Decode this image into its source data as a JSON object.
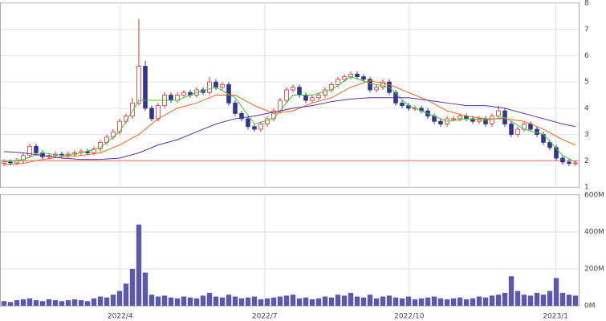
{
  "chart_data": [
    {
      "type": "candlestick",
      "x": [
        0,
        1,
        2,
        3,
        4,
        5,
        6,
        7,
        8,
        9,
        10,
        11,
        12,
        13,
        14,
        15,
        16,
        17,
        18,
        19,
        20,
        21,
        22,
        23,
        24,
        25,
        26,
        27,
        28,
        29,
        30,
        31,
        32,
        33,
        34,
        35,
        36,
        37,
        38,
        39,
        40,
        41,
        42,
        43,
        44,
        45,
        46,
        47,
        48,
        49,
        50,
        51,
        52,
        53,
        54,
        55,
        56,
        57,
        58,
        59,
        60,
        61,
        62,
        63,
        64,
        65,
        66,
        67,
        68,
        69,
        70,
        71,
        72,
        73,
        74,
        75,
        76,
        77,
        78,
        79,
        80,
        81,
        82,
        83,
        84,
        85,
        86,
        87,
        88,
        89
      ],
      "open": [
        1.9,
        1.95,
        1.92,
        2.0,
        2.2,
        2.55,
        2.3,
        2.15,
        2.2,
        2.25,
        2.2,
        2.25,
        2.3,
        2.35,
        2.3,
        2.45,
        2.7,
        2.9,
        3.1,
        3.5,
        3.7,
        4.2,
        5.6,
        4.0,
        3.6,
        4.1,
        4.5,
        4.3,
        4.5,
        4.6,
        4.5,
        4.7,
        4.6,
        5.0,
        4.8,
        4.9,
        4.2,
        3.8,
        3.6,
        3.3,
        3.2,
        3.4,
        3.6,
        3.9,
        4.3,
        4.7,
        4.8,
        4.5,
        4.3,
        4.4,
        4.5,
        4.7,
        4.9,
        5.1,
        5.2,
        5.3,
        5.2,
        5.1,
        4.7,
        4.8,
        5.0,
        4.6,
        4.2,
        4.1,
        4.0,
        4.0,
        3.9,
        3.7,
        3.5,
        3.4,
        3.6,
        3.6,
        3.7,
        3.6,
        3.5,
        3.6,
        3.4,
        3.7,
        3.9,
        3.4,
        3.0,
        3.2,
        3.4,
        3.2,
        3.0,
        2.7,
        2.5,
        2.1,
        1.95,
        1.9
      ],
      "high": [
        2.05,
        2.05,
        2.1,
        2.3,
        2.65,
        2.65,
        2.4,
        2.3,
        2.35,
        2.35,
        2.35,
        2.4,
        2.45,
        2.45,
        2.55,
        2.8,
        3.0,
        3.2,
        3.6,
        3.8,
        4.4,
        7.4,
        5.8,
        4.1,
        4.2,
        4.6,
        4.6,
        4.6,
        4.7,
        4.7,
        4.8,
        4.8,
        5.2,
        5.1,
        5.0,
        5.0,
        4.3,
        3.9,
        3.7,
        3.4,
        3.5,
        3.7,
        4.0,
        4.4,
        4.8,
        4.9,
        4.9,
        4.6,
        4.5,
        4.6,
        4.8,
        5.0,
        5.2,
        5.3,
        5.4,
        5.4,
        5.3,
        5.2,
        4.9,
        5.1,
        5.1,
        4.7,
        4.3,
        4.2,
        4.1,
        4.1,
        4.0,
        3.8,
        3.6,
        3.7,
        3.7,
        3.8,
        3.8,
        3.7,
        3.7,
        3.7,
        3.8,
        4.1,
        4.0,
        3.5,
        3.3,
        3.5,
        3.5,
        3.3,
        3.1,
        2.8,
        2.6,
        2.2,
        2.05,
        2.0
      ],
      "low": [
        1.8,
        1.82,
        1.82,
        1.9,
        2.1,
        2.2,
        2.05,
        2.05,
        2.1,
        2.1,
        2.1,
        2.15,
        2.2,
        2.2,
        2.2,
        2.35,
        2.6,
        2.8,
        3.0,
        3.4,
        3.6,
        4.1,
        3.9,
        3.5,
        3.5,
        4.0,
        4.2,
        4.2,
        4.4,
        4.4,
        4.4,
        4.5,
        4.5,
        4.7,
        4.7,
        4.1,
        3.7,
        3.5,
        3.2,
        3.1,
        3.1,
        3.3,
        3.5,
        3.8,
        4.2,
        4.6,
        4.4,
        4.2,
        4.2,
        4.3,
        4.4,
        4.6,
        4.8,
        5.0,
        5.1,
        5.1,
        5.0,
        4.6,
        4.6,
        4.7,
        4.5,
        4.1,
        4.0,
        3.9,
        3.9,
        3.8,
        3.6,
        3.4,
        3.3,
        3.3,
        3.5,
        3.5,
        3.5,
        3.4,
        3.4,
        3.3,
        3.3,
        3.6,
        3.3,
        2.9,
        2.9,
        3.1,
        3.1,
        2.9,
        2.6,
        2.4,
        2.0,
        1.85,
        1.8,
        1.8
      ],
      "close": [
        1.95,
        1.92,
        2.0,
        2.2,
        2.55,
        2.3,
        2.15,
        2.2,
        2.25,
        2.2,
        2.25,
        2.3,
        2.35,
        2.3,
        2.45,
        2.7,
        2.9,
        3.1,
        3.5,
        3.7,
        4.2,
        5.6,
        4.0,
        3.6,
        4.1,
        4.5,
        4.3,
        4.5,
        4.6,
        4.5,
        4.7,
        4.6,
        5.0,
        4.8,
        4.9,
        4.2,
        3.8,
        3.6,
        3.3,
        3.2,
        3.4,
        3.6,
        3.9,
        4.3,
        4.7,
        4.8,
        4.5,
        4.3,
        4.4,
        4.5,
        4.7,
        4.9,
        5.1,
        5.2,
        5.3,
        5.2,
        5.1,
        4.7,
        4.8,
        5.0,
        4.6,
        4.2,
        4.1,
        4.0,
        4.0,
        3.9,
        3.7,
        3.5,
        3.4,
        3.6,
        3.6,
        3.7,
        3.6,
        3.5,
        3.6,
        3.4,
        3.7,
        3.9,
        3.4,
        3.0,
        3.2,
        3.4,
        3.2,
        3.0,
        2.7,
        2.5,
        2.1,
        1.95,
        1.9,
        1.92
      ],
      "up_color": "#e03030",
      "down_color": "#33348e",
      "series": [
        {
          "color": "#33cc33",
          "x": [
            0,
            3,
            6,
            9,
            12,
            15,
            18,
            21,
            24,
            27,
            30,
            33,
            36,
            39,
            42,
            45,
            48,
            51,
            54,
            57,
            60,
            63,
            66,
            69,
            72,
            75,
            78,
            81,
            84,
            87,
            89
          ],
          "values": [
            1.95,
            2.05,
            2.3,
            2.2,
            2.3,
            2.5,
            3.1,
            4.3,
            4.3,
            4.3,
            4.6,
            4.8,
            4.4,
            3.4,
            3.6,
            4.5,
            4.5,
            4.7,
            5.2,
            4.95,
            4.8,
            4.1,
            3.8,
            3.5,
            3.6,
            3.55,
            3.65,
            3.2,
            3.0,
            2.2,
            1.95
          ]
        },
        {
          "color": "#ee6622",
          "x": [
            0,
            3,
            6,
            9,
            12,
            15,
            18,
            21,
            24,
            27,
            30,
            33,
            36,
            39,
            42,
            45,
            48,
            51,
            54,
            57,
            60,
            63,
            66,
            69,
            72,
            75,
            78,
            81,
            84,
            87,
            89
          ],
          "values": [
            1.85,
            1.9,
            2.05,
            2.15,
            2.2,
            2.3,
            2.6,
            3.0,
            3.6,
            4.0,
            4.2,
            4.5,
            4.5,
            4.1,
            3.8,
            3.9,
            4.2,
            4.4,
            4.8,
            5.05,
            4.9,
            4.6,
            4.3,
            3.9,
            3.7,
            3.6,
            3.6,
            3.5,
            3.2,
            2.8,
            2.6
          ]
        },
        {
          "color": "#5533aa",
          "x": [
            0,
            3,
            6,
            9,
            12,
            15,
            18,
            21,
            24,
            27,
            30,
            33,
            36,
            39,
            42,
            45,
            48,
            51,
            54,
            57,
            60,
            63,
            66,
            69,
            72,
            75,
            78,
            81,
            84,
            87,
            89
          ],
          "values": [
            2.35,
            2.3,
            2.2,
            2.1,
            2.05,
            2.05,
            2.1,
            2.3,
            2.6,
            2.8,
            3.1,
            3.4,
            3.6,
            3.7,
            3.85,
            4.0,
            4.1,
            4.25,
            4.35,
            4.4,
            4.4,
            4.4,
            4.3,
            4.2,
            4.1,
            4.1,
            4.0,
            3.8,
            3.6,
            3.4,
            3.3
          ]
        }
      ],
      "hline": 2,
      "hline_color": "#e87070",
      "xlim": [
        -0.5,
        89.5
      ],
      "ylim": [
        1,
        8
      ],
      "yticks": [
        1,
        2,
        3,
        4,
        5,
        6,
        7,
        8
      ],
      "grid": true
    },
    {
      "type": "bar",
      "x": [
        0,
        1,
        2,
        3,
        4,
        5,
        6,
        7,
        8,
        9,
        10,
        11,
        12,
        13,
        14,
        15,
        16,
        17,
        18,
        19,
        20,
        21,
        22,
        23,
        24,
        25,
        26,
        27,
        28,
        29,
        30,
        31,
        32,
        33,
        34,
        35,
        36,
        37,
        38,
        39,
        40,
        41,
        42,
        43,
        44,
        45,
        46,
        47,
        48,
        49,
        50,
        51,
        52,
        53,
        54,
        55,
        56,
        57,
        58,
        59,
        60,
        61,
        62,
        63,
        64,
        65,
        66,
        67,
        68,
        69,
        70,
        71,
        72,
        73,
        74,
        75,
        76,
        77,
        78,
        79,
        80,
        81,
        82,
        83,
        84,
        85,
        86,
        87,
        88,
        89
      ],
      "values": [
        25,
        20,
        30,
        35,
        40,
        30,
        25,
        35,
        30,
        25,
        30,
        35,
        30,
        25,
        40,
        50,
        45,
        60,
        80,
        120,
        200,
        440,
        180,
        60,
        50,
        55,
        45,
        40,
        50,
        45,
        40,
        55,
        70,
        50,
        45,
        60,
        50,
        40,
        45,
        50,
        35,
        40,
        45,
        50,
        55,
        60,
        40,
        45,
        35,
        40,
        50,
        45,
        60,
        55,
        70,
        50,
        45,
        60,
        40,
        50,
        55,
        45,
        40,
        50,
        35,
        40,
        45,
        50,
        40,
        35,
        40,
        45,
        35,
        40,
        50,
        45,
        55,
        60,
        70,
        160,
        80,
        60,
        55,
        70,
        60,
        80,
        150,
        70,
        60,
        55
      ],
      "color": "#5a5aa8",
      "xlim": [
        -0.5,
        89.5
      ],
      "xticks": [
        {
          "value": 18.1,
          "label": "2022/4"
        },
        {
          "value": 40.6,
          "label": "2022/7"
        },
        {
          "value": 63.1,
          "label": "2022/10"
        },
        {
          "value": 85.9,
          "label": "2023/1"
        }
      ],
      "ylim": [
        0,
        600
      ],
      "yticks": [
        {
          "value": 0,
          "label": "0M"
        },
        {
          "value": 200,
          "label": "200M"
        },
        {
          "value": 400,
          "label": "400M"
        },
        {
          "value": 600,
          "label": "600M"
        }
      ],
      "grid": true
    }
  ]
}
